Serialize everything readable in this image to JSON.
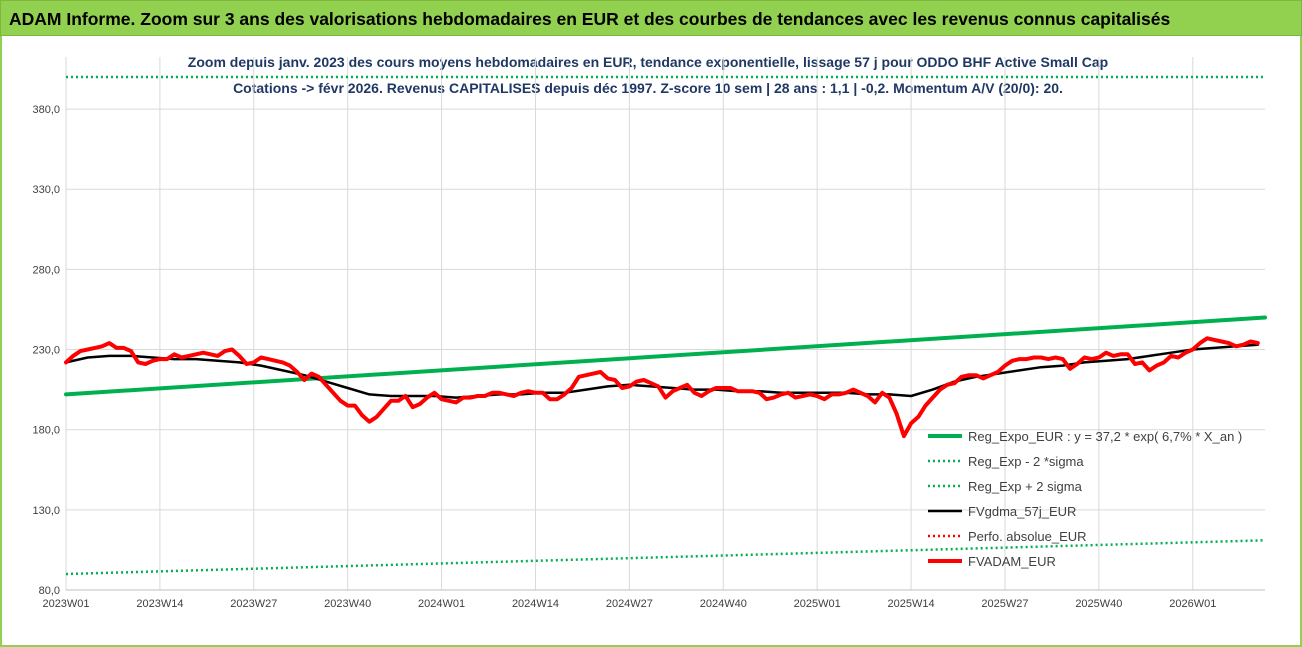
{
  "header": {
    "title": "ADAM Informe. Zoom sur 3 ans des valorisations hebdomadaires en EUR et des courbes de tendances avec les revenus connus capitalisés"
  },
  "chart_data": {
    "type": "line",
    "subtitle_line1": "Zoom depuis janv. 2023 des cours moyens hebdomadaires en EUR, tendance exponentielle, lissage 57 j pour ODDO BHF Active Small Cap",
    "subtitle_line2": "Cotations -> févr 2026. Revenus CAPITALISES depuis déc 1997. Z-score 10 sem | 28 ans : 1,1 | -0,2. Momentum A/V (20/0): 20.",
    "ylim": [
      80,
      400
    ],
    "yticks": [
      80,
      130,
      180,
      230,
      280,
      330,
      380
    ],
    "ytick_labels": [
      "80,0",
      "130,0",
      "180,0",
      "230,0",
      "280,0",
      "330,0",
      "380,0"
    ],
    "x_ticks": [
      {
        "label": "2023W01",
        "week": 0
      },
      {
        "label": "2023W14",
        "week": 13
      },
      {
        "label": "2023W27",
        "week": 26
      },
      {
        "label": "2023W40",
        "week": 39
      },
      {
        "label": "2024W01",
        "week": 52
      },
      {
        "label": "2024W14",
        "week": 65
      },
      {
        "label": "2024W27",
        "week": 78
      },
      {
        "label": "2024W40",
        "week": 91
      },
      {
        "label": "2025W01",
        "week": 104
      },
      {
        "label": "2025W14",
        "week": 117
      },
      {
        "label": "2025W27",
        "week": 130
      },
      {
        "label": "2025W40",
        "week": 143
      },
      {
        "label": "2026W01",
        "week": 156
      }
    ],
    "x_weeks_total": 166,
    "legend_placement": "right",
    "series": [
      {
        "name": "Reg_Expo_EUR : y = 37,2 * exp( 6,7% *  X_an )",
        "color": "#00b050",
        "style": "solid-thick",
        "points": [
          [
            0,
            202
          ],
          [
            166,
            250
          ]
        ]
      },
      {
        "name": "Reg_Exp - 2 *sigma",
        "color": "#00b050",
        "style": "dotted",
        "points": [
          [
            0,
            90
          ],
          [
            166,
            111
          ]
        ]
      },
      {
        "name": "Reg_Exp + 2 sigma",
        "color": "#00b050",
        "style": "dotted",
        "points": [
          [
            0,
            400
          ],
          [
            166,
            400
          ]
        ]
      },
      {
        "name": "FVgdma_57j_EUR",
        "color": "#000000",
        "style": "solid",
        "points": [
          [
            0,
            222
          ],
          [
            3,
            225
          ],
          [
            6,
            226
          ],
          [
            9,
            226
          ],
          [
            12,
            225
          ],
          [
            15,
            224
          ],
          [
            18,
            224
          ],
          [
            21,
            223
          ],
          [
            24,
            222
          ],
          [
            27,
            220
          ],
          [
            30,
            217
          ],
          [
            33,
            214
          ],
          [
            36,
            210
          ],
          [
            39,
            206
          ],
          [
            42,
            202
          ],
          [
            45,
            201
          ],
          [
            48,
            201
          ],
          [
            51,
            201
          ],
          [
            54,
            200
          ],
          [
            57,
            201
          ],
          [
            60,
            202
          ],
          [
            63,
            202
          ],
          [
            66,
            203
          ],
          [
            69,
            203
          ],
          [
            72,
            205
          ],
          [
            75,
            207
          ],
          [
            78,
            208
          ],
          [
            81,
            207
          ],
          [
            84,
            206
          ],
          [
            87,
            205
          ],
          [
            90,
            205
          ],
          [
            93,
            204
          ],
          [
            96,
            204
          ],
          [
            99,
            203
          ],
          [
            102,
            203
          ],
          [
            105,
            203
          ],
          [
            108,
            203
          ],
          [
            111,
            202
          ],
          [
            114,
            202
          ],
          [
            117,
            201
          ],
          [
            120,
            205
          ],
          [
            123,
            210
          ],
          [
            126,
            213
          ],
          [
            129,
            215
          ],
          [
            132,
            217
          ],
          [
            135,
            219
          ],
          [
            138,
            220
          ],
          [
            141,
            222
          ],
          [
            144,
            223
          ],
          [
            147,
            224
          ],
          [
            150,
            226
          ],
          [
            153,
            228
          ],
          [
            156,
            230
          ],
          [
            159,
            231
          ],
          [
            162,
            232
          ],
          [
            165,
            233
          ]
        ]
      },
      {
        "name": "Perfo. absolue_EUR",
        "color": "#ff0000",
        "style": "dotted",
        "points": []
      },
      {
        "name": "FVADAM_EUR",
        "color": "#ff0000",
        "style": "solid-thick",
        "points": [
          [
            0,
            222
          ],
          [
            1,
            226
          ],
          [
            2,
            229
          ],
          [
            3,
            230
          ],
          [
            4,
            231
          ],
          [
            5,
            232
          ],
          [
            6,
            234
          ],
          [
            7,
            231
          ],
          [
            8,
            231
          ],
          [
            9,
            229
          ],
          [
            10,
            222
          ],
          [
            11,
            221
          ],
          [
            12,
            223
          ],
          [
            13,
            224
          ],
          [
            14,
            224
          ],
          [
            15,
            227
          ],
          [
            16,
            225
          ],
          [
            17,
            226
          ],
          [
            18,
            227
          ],
          [
            19,
            228
          ],
          [
            20,
            227
          ],
          [
            21,
            226
          ],
          [
            22,
            229
          ],
          [
            23,
            230
          ],
          [
            24,
            226
          ],
          [
            25,
            221
          ],
          [
            26,
            222
          ],
          [
            27,
            225
          ],
          [
            28,
            224
          ],
          [
            29,
            223
          ],
          [
            30,
            222
          ],
          [
            31,
            220
          ],
          [
            32,
            216
          ],
          [
            33,
            211
          ],
          [
            34,
            215
          ],
          [
            35,
            213
          ],
          [
            36,
            208
          ],
          [
            37,
            203
          ],
          [
            38,
            198
          ],
          [
            39,
            195
          ],
          [
            40,
            195
          ],
          [
            41,
            189
          ],
          [
            42,
            185
          ],
          [
            43,
            188
          ],
          [
            44,
            193
          ],
          [
            45,
            198
          ],
          [
            46,
            198
          ],
          [
            47,
            201
          ],
          [
            48,
            194
          ],
          [
            49,
            196
          ],
          [
            50,
            200
          ],
          [
            51,
            203
          ],
          [
            52,
            199
          ],
          [
            53,
            198
          ],
          [
            54,
            197
          ],
          [
            55,
            200
          ],
          [
            56,
            200
          ],
          [
            57,
            201
          ],
          [
            58,
            201
          ],
          [
            59,
            203
          ],
          [
            60,
            203
          ],
          [
            61,
            202
          ],
          [
            62,
            201
          ],
          [
            63,
            203
          ],
          [
            64,
            204
          ],
          [
            65,
            203
          ],
          [
            66,
            203
          ],
          [
            67,
            199
          ],
          [
            68,
            199
          ],
          [
            69,
            202
          ],
          [
            70,
            206
          ],
          [
            71,
            213
          ],
          [
            72,
            214
          ],
          [
            73,
            215
          ],
          [
            74,
            216
          ],
          [
            75,
            212
          ],
          [
            76,
            211
          ],
          [
            77,
            206
          ],
          [
            78,
            207
          ],
          [
            79,
            210
          ],
          [
            80,
            211
          ],
          [
            81,
            209
          ],
          [
            82,
            207
          ],
          [
            83,
            200
          ],
          [
            84,
            204
          ],
          [
            85,
            206
          ],
          [
            86,
            208
          ],
          [
            87,
            203
          ],
          [
            88,
            201
          ],
          [
            89,
            204
          ],
          [
            90,
            206
          ],
          [
            91,
            206
          ],
          [
            92,
            206
          ],
          [
            93,
            204
          ],
          [
            94,
            204
          ],
          [
            95,
            204
          ],
          [
            96,
            203
          ],
          [
            97,
            199
          ],
          [
            98,
            200
          ],
          [
            99,
            202
          ],
          [
            100,
            203
          ],
          [
            101,
            200
          ],
          [
            102,
            201
          ],
          [
            103,
            202
          ],
          [
            104,
            201
          ],
          [
            105,
            199
          ],
          [
            106,
            202
          ],
          [
            107,
            202
          ],
          [
            108,
            203
          ],
          [
            109,
            205
          ],
          [
            110,
            203
          ],
          [
            111,
            201
          ],
          [
            112,
            197
          ],
          [
            113,
            203
          ],
          [
            114,
            200
          ],
          [
            115,
            190
          ],
          [
            116,
            176
          ],
          [
            117,
            184
          ],
          [
            118,
            188
          ],
          [
            119,
            195
          ],
          [
            120,
            200
          ],
          [
            121,
            205
          ],
          [
            122,
            208
          ],
          [
            123,
            209
          ],
          [
            124,
            213
          ],
          [
            125,
            214
          ],
          [
            126,
            214
          ],
          [
            127,
            212
          ],
          [
            128,
            214
          ],
          [
            129,
            216
          ],
          [
            130,
            220
          ],
          [
            131,
            223
          ],
          [
            132,
            224
          ],
          [
            133,
            224
          ],
          [
            134,
            225
          ],
          [
            135,
            225
          ],
          [
            136,
            224
          ],
          [
            137,
            225
          ],
          [
            138,
            224
          ],
          [
            139,
            218
          ],
          [
            140,
            221
          ],
          [
            141,
            225
          ],
          [
            142,
            224
          ],
          [
            143,
            225
          ],
          [
            144,
            228
          ],
          [
            145,
            226
          ],
          [
            146,
            227
          ],
          [
            147,
            227
          ],
          [
            148,
            221
          ],
          [
            149,
            222
          ],
          [
            150,
            217
          ],
          [
            151,
            220
          ],
          [
            152,
            222
          ],
          [
            153,
            226
          ],
          [
            154,
            225
          ],
          [
            155,
            228
          ],
          [
            156,
            230
          ],
          [
            157,
            234
          ],
          [
            158,
            237
          ],
          [
            159,
            236
          ],
          [
            160,
            235
          ],
          [
            161,
            234
          ],
          [
            162,
            232
          ],
          [
            163,
            233
          ],
          [
            164,
            235
          ],
          [
            165,
            234
          ]
        ]
      }
    ]
  }
}
